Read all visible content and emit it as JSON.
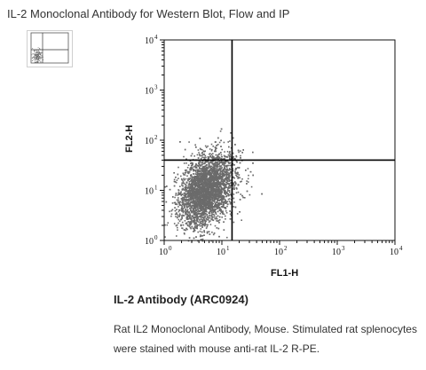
{
  "header": {
    "title": "IL-2 Monoclonal Antibody for Western Blot, Flow and IP"
  },
  "thumbnail": {
    "icon": "flow-plot-thumbnail-icon"
  },
  "chart_data": {
    "type": "scatter",
    "title": "",
    "xlabel": "FL1-H",
    "ylabel": "FL2-H",
    "x_scale": "log",
    "y_scale": "log",
    "xlim": [
      1,
      10000
    ],
    "ylim": [
      1,
      10000
    ],
    "x_ticks": [
      "10",
      "10",
      "10",
      "10",
      "10"
    ],
    "x_tick_exponents": [
      "0",
      "1",
      "2",
      "3",
      "4"
    ],
    "y_ticks": [
      "10",
      "10",
      "10",
      "10",
      "10"
    ],
    "y_tick_exponents": [
      "0",
      "1",
      "2",
      "3",
      "4"
    ],
    "quadrant_gate": {
      "x": 15,
      "y": 40
    },
    "grid": false,
    "point_color": "#6b6b6b",
    "population": {
      "center_x": 5,
      "center_y": 10,
      "count": 4500
    }
  },
  "caption": {
    "title": "IL-2 Antibody (ARC0924)",
    "text": "Rat IL2 Monoclonal Antibody, Mouse. Stimulated rat splenocytes were stained with mouse anti-rat IL-2 R-PE."
  }
}
